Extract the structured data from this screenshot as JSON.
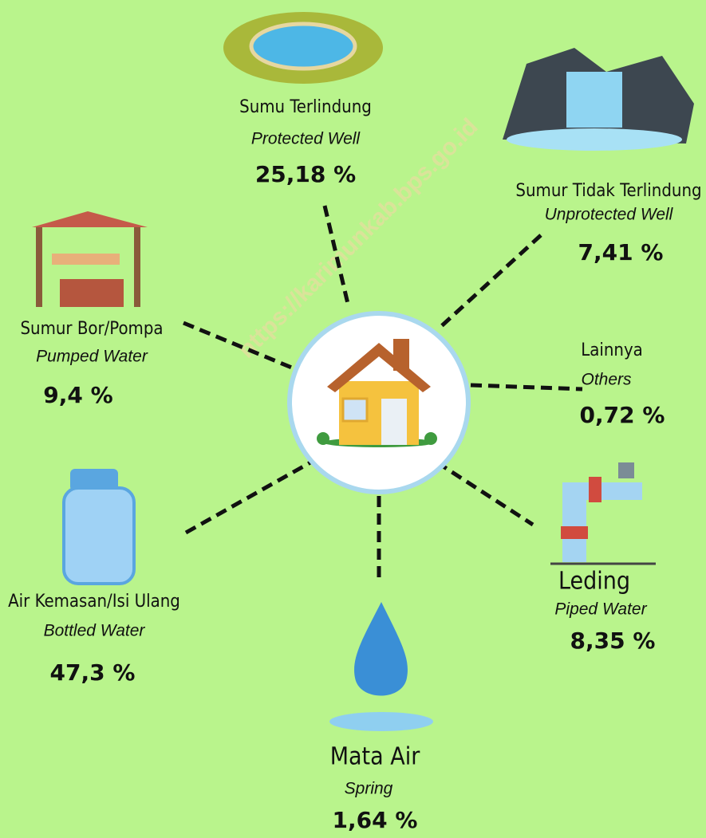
{
  "watermark": "https://karimunkab.bps.go.id",
  "nodes": [
    {
      "label_id": "Sumu Terlindung",
      "label_en": "Protected Well",
      "value": "25,18 %"
    },
    {
      "label_id": "Sumur Tidak Terlindung",
      "label_en": "Unprotected Well",
      "value": "7,41 %"
    },
    {
      "label_id": "Sumur Bor/Pompa",
      "label_en": "Pumped Water",
      "value": "9,4 %"
    },
    {
      "label_id": "Lainnya",
      "label_en": "Others",
      "value": "0,72 %"
    },
    {
      "label_id": "Leding",
      "label_en": "Piped Water",
      "value": "8,35 %"
    },
    {
      "label_id": "Air Kemasan/Isi Ulang",
      "label_en": "Bottled Water",
      "value": "47,3 %"
    },
    {
      "label_id": "Mata Air",
      "label_en": "Spring",
      "value": "1,64 %"
    }
  ]
}
